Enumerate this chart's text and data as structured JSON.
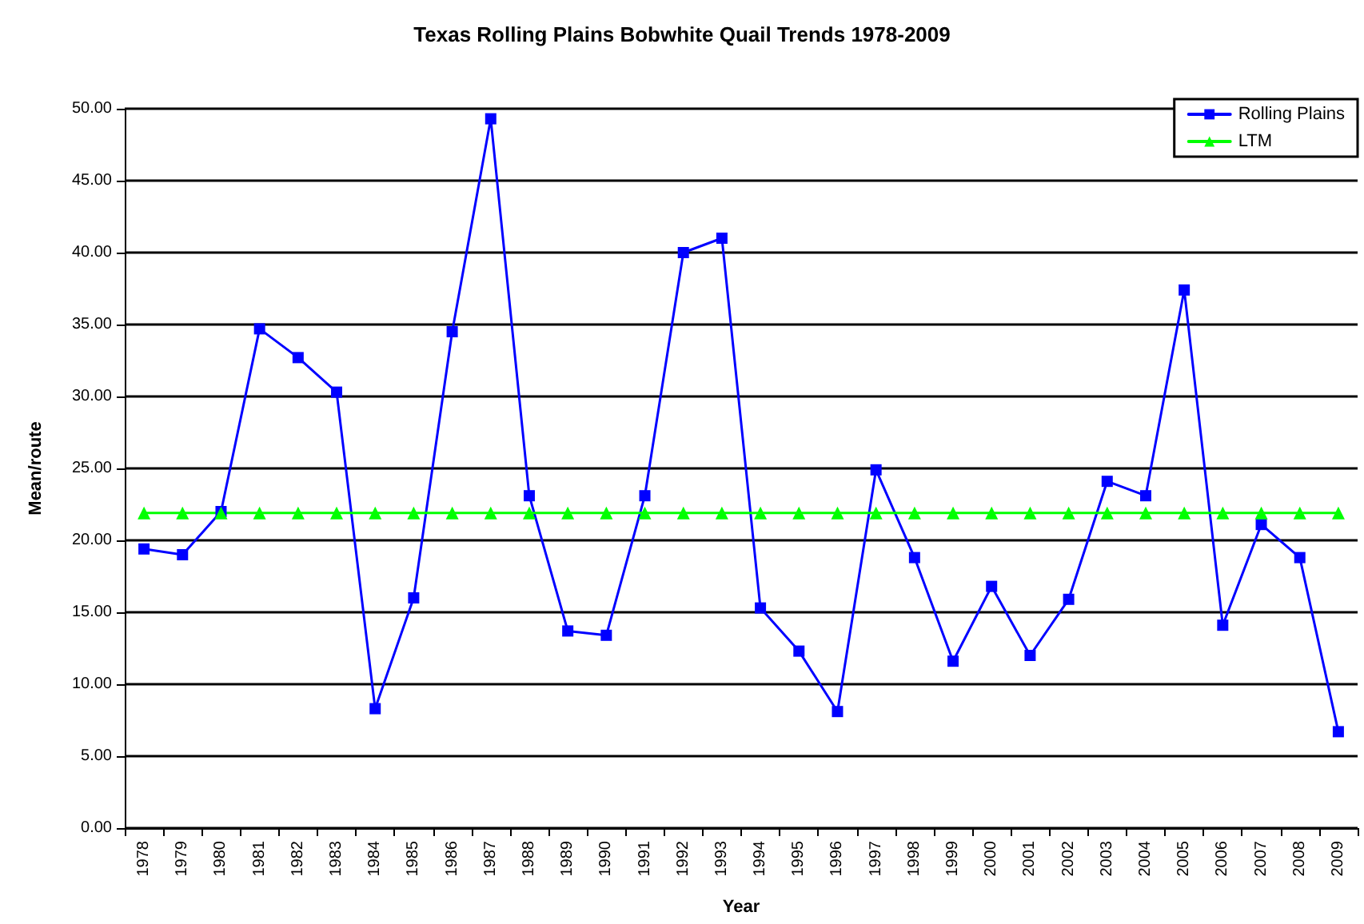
{
  "chart_data": {
    "type": "line",
    "title": "Texas Rolling Plains Bobwhite Quail Trends 1978-2009",
    "xlabel": "Year",
    "ylabel": "Mean/route",
    "categories": [
      "1978",
      "1979",
      "1980",
      "1981",
      "1982",
      "1983",
      "1984",
      "1985",
      "1986",
      "1987",
      "1988",
      "1989",
      "1990",
      "1991",
      "1992",
      "1993",
      "1994",
      "1995",
      "1996",
      "1997",
      "1998",
      "1999",
      "2000",
      "2001",
      "2002",
      "2003",
      "2004",
      "2005",
      "2006",
      "2007",
      "2008",
      "2009"
    ],
    "series": [
      {
        "name": "Rolling Plains",
        "color": "#0000ff",
        "marker": "square",
        "values": [
          19.4,
          19.0,
          22.0,
          34.7,
          32.7,
          30.3,
          8.3,
          16.0,
          34.5,
          49.3,
          23.1,
          13.7,
          13.4,
          23.1,
          40.0,
          41.0,
          15.3,
          12.3,
          8.1,
          24.9,
          18.8,
          11.6,
          16.8,
          12.0,
          15.9,
          24.1,
          23.1,
          37.4,
          14.1,
          21.1,
          18.8,
          6.7
        ]
      },
      {
        "name": "LTM",
        "color": "#00ff00",
        "marker": "triangle",
        "values": [
          21.9,
          21.9,
          21.9,
          21.9,
          21.9,
          21.9,
          21.9,
          21.9,
          21.9,
          21.9,
          21.9,
          21.9,
          21.9,
          21.9,
          21.9,
          21.9,
          21.9,
          21.9,
          21.9,
          21.9,
          21.9,
          21.9,
          21.9,
          21.9,
          21.9,
          21.9,
          21.9,
          21.9,
          21.9,
          21.9,
          21.9,
          21.9
        ]
      }
    ],
    "ylim": [
      0,
      50
    ],
    "yticks": [
      {
        "value": 0,
        "label": "0.00"
      },
      {
        "value": 5,
        "label": "5.00"
      },
      {
        "value": 10,
        "label": "10.00"
      },
      {
        "value": 15,
        "label": "15.00"
      },
      {
        "value": 20,
        "label": "20.00"
      },
      {
        "value": 25,
        "label": "25.00"
      },
      {
        "value": 30,
        "label": "30.00"
      },
      {
        "value": 35,
        "label": "35.00"
      },
      {
        "value": 40,
        "label": "40.00"
      },
      {
        "value": 45,
        "label": "45.00"
      },
      {
        "value": 50,
        "label": "50.00"
      }
    ],
    "grid": "y",
    "legend": "top right",
    "line_style": "solid"
  }
}
